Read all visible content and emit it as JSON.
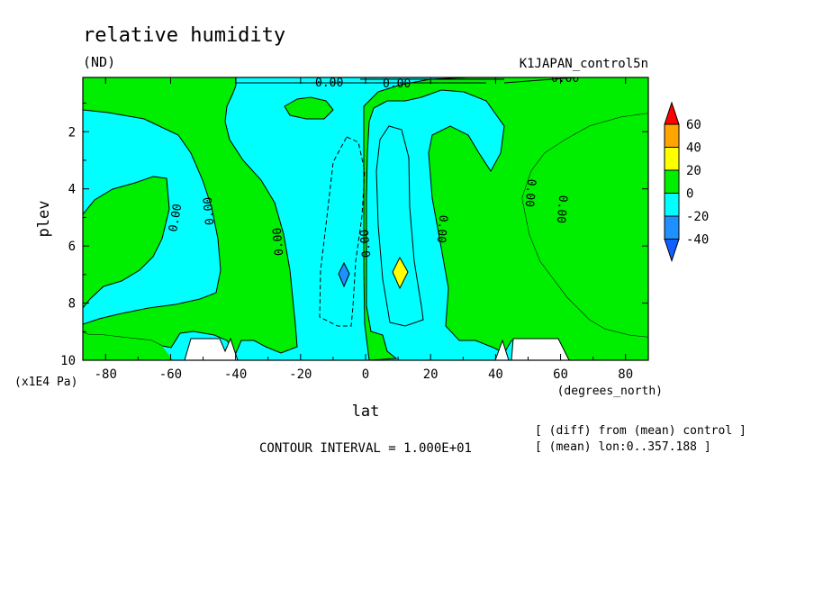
{
  "chart_data": {
    "type": "heatmap",
    "title": "relative humidity",
    "units": "(ND)",
    "dataset": "K1JAPAN_control5n",
    "xlabel": "lat",
    "x_units": "(degrees_north)",
    "ylabel": "plev",
    "y_units": "(x1E4 Pa)",
    "xlim": [
      -87,
      87
    ],
    "ylim": [
      10,
      0.1
    ],
    "x_ticks": [
      "-80",
      "-60",
      "-40",
      "-20",
      "0",
      "20",
      "40",
      "60",
      "80"
    ],
    "y_ticks": [
      "2",
      "4",
      "6",
      "8",
      "10"
    ],
    "contour_interval_text": "CONTOUR INTERVAL = 1.000E+01",
    "notes": [
      "[ (diff) from (mean) control ]",
      "[ (mean) lon:0..357.188 ]"
    ],
    "contour_labels": [
      "0.00",
      "0.00",
      "0.00",
      "0.00",
      "0.00",
      "0.00",
      "0.00",
      "0.00",
      "0.00",
      "0.00",
      "0.00",
      "0.00",
      "0.00",
      "0.00"
    ],
    "colorbar": {
      "levels": [
        "60",
        "40",
        "20",
        "0",
        "-20",
        "-40"
      ],
      "colors": [
        "#ff0000",
        "#ffa500",
        "#ffff00",
        "#00ee00",
        "#00ffff",
        "#1e90ff",
        "#1060ff"
      ]
    }
  }
}
